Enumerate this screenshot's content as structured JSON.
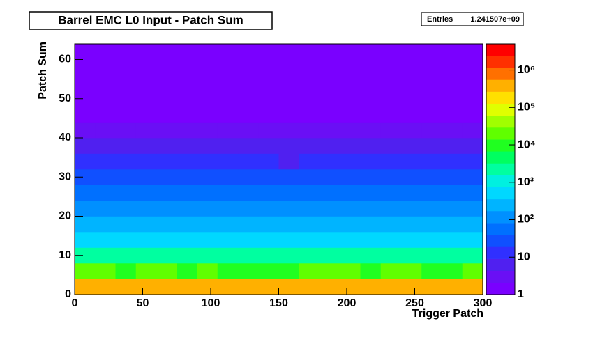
{
  "chart_data": {
    "type": "heatmap",
    "title": "Barrel EMC L0 Input - Patch Sum",
    "stats": {
      "label": "Entries",
      "value": "1.241507e+09"
    },
    "x_label": "Trigger Patch",
    "y_label": "Patch Sum",
    "xlim": [
      0,
      300
    ],
    "xticks": [
      0,
      50,
      100,
      150,
      200,
      250,
      300
    ],
    "ylim": [
      0,
      64
    ],
    "yticks": [
      0,
      10,
      20,
      30,
      40,
      50,
      60
    ],
    "xbins": [
      0,
      15,
      30,
      45,
      60,
      75,
      90,
      105,
      120,
      135,
      150,
      165,
      180,
      195,
      210,
      225,
      240,
      255,
      270,
      285,
      300
    ],
    "ybins": [
      0,
      4,
      8,
      12,
      16,
      20,
      24,
      28,
      32,
      36,
      40,
      44,
      48,
      52,
      56,
      60,
      64
    ],
    "zlim": [
      1,
      5000000
    ],
    "zscale": "log",
    "zticks": [
      1,
      10,
      {
        "value": 100,
        "label": "10²"
      },
      {
        "value": 1000,
        "label": "10³"
      },
      {
        "value": 10000,
        "label": "10⁴"
      },
      {
        "value": 100000,
        "label": "10⁵"
      },
      {
        "value": 1000000,
        "label": "10⁶"
      }
    ],
    "palette": [
      "#7a00ff",
      "#6a0ff5",
      "#5020f0",
      "#3030ff",
      "#1050ff",
      "#0070ff",
      "#0090ff",
      "#00b4ff",
      "#00d8ff",
      "#00f0e0",
      "#00ffa0",
      "#00ff60",
      "#20ff20",
      "#60ff00",
      "#a0ff00",
      "#e0ff00",
      "#ffe000",
      "#ffb000",
      "#ff7000",
      "#ff3000",
      "#ff0000"
    ],
    "z": [
      [
        300000,
        320000,
        290000,
        310000,
        300000,
        280000,
        300000,
        290000,
        310000,
        300000,
        280000,
        300000,
        320000,
        300000,
        290000,
        310000,
        300000,
        280000,
        290000,
        300000
      ],
      [
        15000,
        16000,
        14000,
        15000,
        15000,
        14000,
        15000,
        13000,
        14000,
        14000,
        12000,
        15000,
        16000,
        15000,
        14000,
        15000,
        15000,
        14000,
        13000,
        15000
      ],
      [
        2000,
        2200,
        1900,
        2000,
        2100,
        1800,
        2000,
        1800,
        1900,
        1700,
        1600,
        2000,
        2200,
        2100,
        2000,
        2000,
        2100,
        1900,
        1800,
        2000
      ],
      [
        600,
        650,
        580,
        600,
        620,
        560,
        600,
        540,
        560,
        520,
        480,
        600,
        650,
        620,
        600,
        600,
        620,
        580,
        560,
        600
      ],
      [
        250,
        270,
        240,
        250,
        260,
        230,
        250,
        220,
        230,
        210,
        200,
        250,
        270,
        260,
        250,
        250,
        260,
        240,
        230,
        250
      ],
      [
        120,
        130,
        115,
        120,
        125,
        110,
        120,
        105,
        110,
        100,
        95,
        120,
        130,
        125,
        120,
        120,
        125,
        115,
        110,
        120
      ],
      [
        50,
        55,
        48,
        50,
        52,
        46,
        50,
        44,
        46,
        42,
        40,
        50,
        55,
        52,
        50,
        50,
        52,
        48,
        46,
        50
      ],
      [
        25,
        27,
        24,
        25,
        26,
        23,
        25,
        22,
        23,
        21,
        20,
        25,
        27,
        26,
        25,
        25,
        26,
        24,
        23,
        25
      ],
      [
        12,
        13,
        11,
        12,
        12,
        11,
        12,
        10,
        11,
        10,
        9,
        12,
        13,
        12,
        12,
        12,
        12,
        11,
        11,
        12
      ],
      [
        6,
        6.5,
        5.5,
        6,
        6,
        5.5,
        6,
        5,
        5.5,
        5,
        4.5,
        6,
        6.5,
        6,
        6,
        6,
        6,
        5.5,
        5.5,
        6
      ],
      [
        4,
        4,
        3.5,
        4,
        4,
        3.5,
        4,
        3,
        3.5,
        3,
        3,
        4,
        4,
        4,
        4,
        4,
        4,
        3.5,
        3.5,
        4
      ],
      [
        2,
        2,
        2,
        2,
        2,
        2,
        2,
        1.8,
        1.8,
        1.8,
        1.6,
        2,
        2,
        2,
        2,
        2,
        2,
        2,
        1.8,
        2
      ],
      [
        1.5,
        1.5,
        1.5,
        1.5,
        1.5,
        1.4,
        1.5,
        1.4,
        1.4,
        1.4,
        1.3,
        1.5,
        1.5,
        1.5,
        1.5,
        1.5,
        1.5,
        1.4,
        1.4,
        1.5
      ],
      [
        1.2,
        1.2,
        1.2,
        1.2,
        1.2,
        1.2,
        1.2,
        1.1,
        1.1,
        1.1,
        1.1,
        1.2,
        1.2,
        1.2,
        1.2,
        1.2,
        1.2,
        1.2,
        1.1,
        1.2
      ],
      [
        1,
        1,
        1,
        1,
        1,
        1,
        1,
        1,
        1,
        1,
        1,
        1,
        1,
        1,
        1,
        1,
        1,
        1,
        1,
        1
      ],
      [
        1.5,
        1.5,
        1.5,
        1.5,
        1.5,
        1.5,
        1.5,
        1.5,
        1.5,
        1.5,
        1.5,
        1.5,
        1.5,
        1.5,
        1.5,
        1.5,
        1.5,
        1.5,
        1.5,
        1.5
      ]
    ]
  }
}
